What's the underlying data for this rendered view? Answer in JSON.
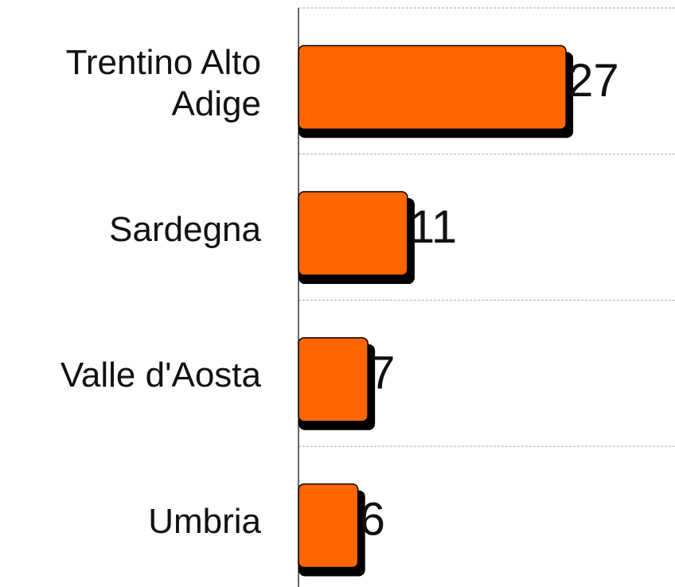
{
  "chart_data": {
    "type": "bar",
    "orientation": "horizontal",
    "categories": [
      "Trentino Alto Adige",
      "Sardegna",
      "Valle d'Aosta",
      "Umbria"
    ],
    "values": [
      27,
      11,
      7,
      6
    ],
    "color": "#ff6600",
    "xlim": [
      0,
      38
    ]
  }
}
